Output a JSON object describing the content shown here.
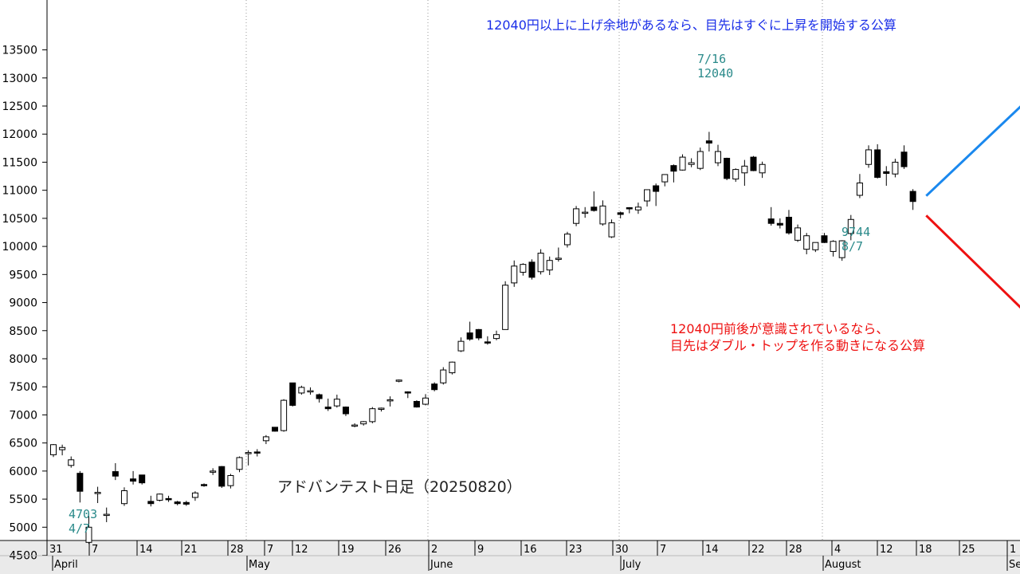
{
  "chart_data": {
    "type": "candlestick",
    "title": "アドバンテスト日足（20250820）",
    "ylim": [
      4100,
      13500
    ],
    "y_ticks": [
      4500,
      5000,
      5500,
      6000,
      6500,
      7000,
      7500,
      8000,
      8500,
      9000,
      9500,
      10000,
      10500,
      11000,
      11500,
      12000,
      12500,
      13000,
      13500
    ],
    "x_tick_labels": [
      "31",
      "7",
      "14",
      "21",
      "28",
      "7",
      "12",
      "19",
      "26",
      "2",
      "9",
      "16",
      "23",
      "30",
      "7",
      "14",
      "22",
      "28",
      "4",
      "12",
      "18",
      "25",
      "1"
    ],
    "month_labels": [
      "April",
      "May",
      "June",
      "July",
      "August",
      "Se"
    ],
    "candles": [
      {
        "o": 6290,
        "h": 6480,
        "l": 6250,
        "c": 6470
      },
      {
        "o": 6380,
        "h": 6470,
        "l": 6280,
        "c": 6420
      },
      {
        "o": 6100,
        "h": 6260,
        "l": 6060,
        "c": 6200
      },
      {
        "o": 5960,
        "h": 6000,
        "l": 5440,
        "c": 5640
      },
      {
        "o": 4730,
        "h": 5200,
        "l": 4703,
        "c": 5000
      },
      {
        "o": 5600,
        "h": 5720,
        "l": 5430,
        "c": 5620
      },
      {
        "o": 5210,
        "h": 5350,
        "l": 5090,
        "c": 5230
      },
      {
        "o": 5990,
        "h": 6140,
        "l": 5840,
        "c": 5910
      },
      {
        "o": 5420,
        "h": 5710,
        "l": 5380,
        "c": 5650
      },
      {
        "o": 5860,
        "h": 6000,
        "l": 5760,
        "c": 5820
      },
      {
        "o": 5930,
        "h": 5930,
        "l": 5760,
        "c": 5790
      },
      {
        "o": 5460,
        "h": 5560,
        "l": 5370,
        "c": 5420
      },
      {
        "o": 5480,
        "h": 5600,
        "l": 5460,
        "c": 5590
      },
      {
        "o": 5510,
        "h": 5560,
        "l": 5450,
        "c": 5500
      },
      {
        "o": 5450,
        "h": 5470,
        "l": 5390,
        "c": 5420
      },
      {
        "o": 5440,
        "h": 5470,
        "l": 5380,
        "c": 5410
      },
      {
        "o": 5530,
        "h": 5640,
        "l": 5470,
        "c": 5610
      },
      {
        "o": 5760,
        "h": 5780,
        "l": 5720,
        "c": 5750
      },
      {
        "o": 5980,
        "h": 6050,
        "l": 5930,
        "c": 6000
      },
      {
        "o": 6080,
        "h": 6090,
        "l": 5700,
        "c": 5730
      },
      {
        "o": 5740,
        "h": 5950,
        "l": 5690,
        "c": 5920
      },
      {
        "o": 6030,
        "h": 6260,
        "l": 5980,
        "c": 6240
      },
      {
        "o": 6310,
        "h": 6370,
        "l": 6100,
        "c": 6330
      },
      {
        "o": 6340,
        "h": 6390,
        "l": 6260,
        "c": 6320
      },
      {
        "o": 6540,
        "h": 6640,
        "l": 6480,
        "c": 6610
      },
      {
        "o": 6780,
        "h": 6780,
        "l": 6700,
        "c": 6710
      },
      {
        "o": 6720,
        "h": 7280,
        "l": 6700,
        "c": 7260
      },
      {
        "o": 7570,
        "h": 7570,
        "l": 7150,
        "c": 7170
      },
      {
        "o": 7390,
        "h": 7520,
        "l": 7360,
        "c": 7490
      },
      {
        "o": 7420,
        "h": 7490,
        "l": 7360,
        "c": 7430
      },
      {
        "o": 7360,
        "h": 7380,
        "l": 7220,
        "c": 7290
      },
      {
        "o": 7140,
        "h": 7290,
        "l": 7070,
        "c": 7110
      },
      {
        "o": 7160,
        "h": 7360,
        "l": 7130,
        "c": 7280
      },
      {
        "o": 7140,
        "h": 7150,
        "l": 6980,
        "c": 7020
      },
      {
        "o": 6810,
        "h": 6850,
        "l": 6780,
        "c": 6820
      },
      {
        "o": 6840,
        "h": 6890,
        "l": 6810,
        "c": 6880
      },
      {
        "o": 6880,
        "h": 7140,
        "l": 6850,
        "c": 7110
      },
      {
        "o": 7100,
        "h": 7130,
        "l": 7060,
        "c": 7120
      },
      {
        "o": 7260,
        "h": 7330,
        "l": 7150,
        "c": 7270
      },
      {
        "o": 7610,
        "h": 7630,
        "l": 7580,
        "c": 7620
      },
      {
        "o": 7410,
        "h": 7420,
        "l": 7300,
        "c": 7400
      },
      {
        "o": 7240,
        "h": 7260,
        "l": 7130,
        "c": 7140
      },
      {
        "o": 7190,
        "h": 7370,
        "l": 7170,
        "c": 7300
      },
      {
        "o": 7550,
        "h": 7580,
        "l": 7420,
        "c": 7450
      },
      {
        "o": 7570,
        "h": 7850,
        "l": 7540,
        "c": 7800
      },
      {
        "o": 7750,
        "h": 7950,
        "l": 7720,
        "c": 7940
      },
      {
        "o": 8140,
        "h": 8380,
        "l": 8120,
        "c": 8310
      },
      {
        "o": 8460,
        "h": 8660,
        "l": 8320,
        "c": 8350
      },
      {
        "o": 8520,
        "h": 8530,
        "l": 8330,
        "c": 8370
      },
      {
        "o": 8300,
        "h": 8400,
        "l": 8250,
        "c": 8290
      },
      {
        "o": 8360,
        "h": 8500,
        "l": 8330,
        "c": 8430
      },
      {
        "o": 8520,
        "h": 9380,
        "l": 8520,
        "c": 9310
      },
      {
        "o": 9350,
        "h": 9750,
        "l": 9280,
        "c": 9650
      },
      {
        "o": 9540,
        "h": 9700,
        "l": 9480,
        "c": 9680
      },
      {
        "o": 9720,
        "h": 9770,
        "l": 9410,
        "c": 9450
      },
      {
        "o": 9550,
        "h": 9950,
        "l": 9500,
        "c": 9880
      },
      {
        "o": 9580,
        "h": 9820,
        "l": 9490,
        "c": 9750
      },
      {
        "o": 9780,
        "h": 9980,
        "l": 9730,
        "c": 9790
      },
      {
        "o": 10030,
        "h": 10260,
        "l": 9980,
        "c": 10220
      },
      {
        "o": 10410,
        "h": 10720,
        "l": 10360,
        "c": 10670
      },
      {
        "o": 10590,
        "h": 10700,
        "l": 10510,
        "c": 10610
      },
      {
        "o": 10700,
        "h": 10980,
        "l": 10620,
        "c": 10640
      },
      {
        "o": 10400,
        "h": 10820,
        "l": 10370,
        "c": 10720
      },
      {
        "o": 10170,
        "h": 10480,
        "l": 10150,
        "c": 10420
      },
      {
        "o": 10600,
        "h": 10620,
        "l": 10500,
        "c": 10570
      },
      {
        "o": 10690,
        "h": 10700,
        "l": 10590,
        "c": 10680
      },
      {
        "o": 10650,
        "h": 10780,
        "l": 10580,
        "c": 10700
      },
      {
        "o": 10810,
        "h": 11010,
        "l": 10710,
        "c": 11010
      },
      {
        "o": 11080,
        "h": 11120,
        "l": 10720,
        "c": 10980
      },
      {
        "o": 11150,
        "h": 11270,
        "l": 11070,
        "c": 11280
      },
      {
        "o": 11440,
        "h": 11460,
        "l": 11140,
        "c": 11340
      },
      {
        "o": 11360,
        "h": 11640,
        "l": 11350,
        "c": 11590
      },
      {
        "o": 11460,
        "h": 11570,
        "l": 11410,
        "c": 11490
      },
      {
        "o": 11390,
        "h": 11760,
        "l": 11360,
        "c": 11690
      },
      {
        "o": 11880,
        "h": 12040,
        "l": 11690,
        "c": 11840
      },
      {
        "o": 11490,
        "h": 11810,
        "l": 11430,
        "c": 11690
      },
      {
        "o": 11570,
        "h": 11580,
        "l": 11180,
        "c": 11210
      },
      {
        "o": 11200,
        "h": 11390,
        "l": 11150,
        "c": 11370
      },
      {
        "o": 11310,
        "h": 11540,
        "l": 11080,
        "c": 11430
      },
      {
        "o": 11590,
        "h": 11610,
        "l": 11340,
        "c": 11350
      },
      {
        "o": 11310,
        "h": 11510,
        "l": 11220,
        "c": 11460
      },
      {
        "o": 10490,
        "h": 10700,
        "l": 10370,
        "c": 10410
      },
      {
        "o": 10410,
        "h": 10500,
        "l": 10320,
        "c": 10380
      },
      {
        "o": 10520,
        "h": 10650,
        "l": 10210,
        "c": 10240
      },
      {
        "o": 10110,
        "h": 10390,
        "l": 10080,
        "c": 10330
      },
      {
        "o": 9950,
        "h": 10240,
        "l": 9860,
        "c": 10190
      },
      {
        "o": 9940,
        "h": 10070,
        "l": 9900,
        "c": 10070
      },
      {
        "o": 10190,
        "h": 10240,
        "l": 10060,
        "c": 10070
      },
      {
        "o": 9910,
        "h": 10110,
        "l": 9820,
        "c": 10090
      },
      {
        "o": 9800,
        "h": 10110,
        "l": 9744,
        "c": 10100
      },
      {
        "o": 10230,
        "h": 10560,
        "l": 10110,
        "c": 10480
      },
      {
        "o": 10910,
        "h": 11290,
        "l": 10860,
        "c": 11130
      },
      {
        "o": 11460,
        "h": 11800,
        "l": 11400,
        "c": 11720
      },
      {
        "o": 11720,
        "h": 11820,
        "l": 11210,
        "c": 11230
      },
      {
        "o": 11330,
        "h": 11430,
        "l": 11080,
        "c": 11300
      },
      {
        "o": 11290,
        "h": 11560,
        "l": 11230,
        "c": 11500
      },
      {
        "o": 11680,
        "h": 11800,
        "l": 11380,
        "c": 11420
      },
      {
        "o": 10980,
        "h": 11020,
        "l": 10650,
        "c": 10800
      }
    ],
    "projections": [
      {
        "from": [
          98.5,
          10900
        ],
        "to": [
          114.5,
          13290
        ],
        "color": "#1a88ee"
      },
      {
        "from": [
          98.5,
          10550
        ],
        "to": [
          114.5,
          8090
        ],
        "color": "#ee1111"
      }
    ],
    "annotations": [
      {
        "lines": [
          "7/16",
          "12040"
        ],
        "color": "#2a8a8a"
      },
      {
        "lines": [
          "9744",
          "8/7"
        ],
        "color": "#2a8a8a"
      },
      {
        "lines": [
          "4703",
          "4/7"
        ],
        "color": "#2a8a8a"
      }
    ],
    "scenario_up": {
      "text": "12040円以上に上げ余地があるなら、目先はすぐに上昇を開始する公算",
      "color": "#1a2ee8"
    },
    "scenario_down": {
      "lines": [
        "12040円前後が意識されているなら、",
        "目先はダブル・トップを作る動きになる公算"
      ],
      "color": "#ee1111"
    },
    "colors": {
      "up_body": "#ffffff",
      "down_body": "#000000",
      "wick": "#000000",
      "axis": "#000000",
      "grid": "#999999"
    }
  }
}
